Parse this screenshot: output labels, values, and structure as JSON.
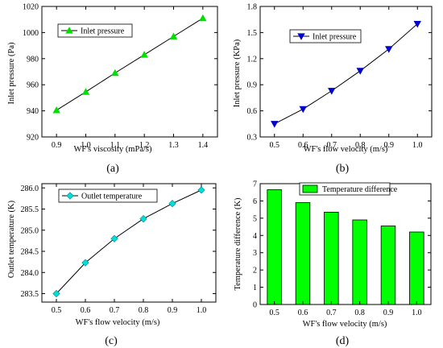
{
  "chart_data": [
    {
      "panel": "(a)",
      "type": "line",
      "marker": "triangle-up",
      "color": "#00e000",
      "x": [
        0.9,
        1.0,
        1.1,
        1.2,
        1.3,
        1.4
      ],
      "series": [
        {
          "name": "Inlet pressure",
          "values": [
            940.5,
            954.5,
            969,
            983,
            997,
            1011
          ]
        }
      ],
      "xlabel": "WF's viscosity (mPa/s)",
      "ylabel": "Inlet pressure (Pa)",
      "xlim": [
        0.85,
        1.45
      ],
      "ylim": [
        920,
        1020
      ],
      "xticks": [
        "0.9",
        "1.0",
        "1.1",
        "1.2",
        "1.3",
        "1.4"
      ],
      "yticks": [
        "920",
        "940",
        "960",
        "980",
        "1000",
        "1020"
      ],
      "legend": "top-left",
      "grid": false
    },
    {
      "panel": "(b)",
      "type": "line",
      "marker": "triangle-down",
      "color": "#0000cc",
      "x": [
        0.5,
        0.6,
        0.7,
        0.8,
        0.9,
        1.0
      ],
      "series": [
        {
          "name": "Inlet pressure",
          "values": [
            0.45,
            0.62,
            0.83,
            1.06,
            1.31,
            1.6
          ]
        }
      ],
      "xlabel": "WF's flow velocity (m/s)",
      "ylabel": "Inlet pressure (KPa)",
      "xlim": [
        0.45,
        1.05
      ],
      "ylim": [
        0.3,
        1.8
      ],
      "xticks": [
        "0.5",
        "0.6",
        "0.7",
        "0.8",
        "0.9",
        "1.0"
      ],
      "yticks": [
        "0.3",
        "0.6",
        "0.9",
        "1.2",
        "1.5",
        "1.8"
      ],
      "legend": "top-left",
      "grid": false
    },
    {
      "panel": "(c)",
      "type": "line",
      "marker": "diamond",
      "color": "#00dddd",
      "x": [
        0.5,
        0.6,
        0.7,
        0.8,
        0.9,
        1.0
      ],
      "series": [
        {
          "name": "Outlet temperature",
          "values": [
            283.5,
            284.23,
            284.8,
            285.27,
            285.63,
            285.95
          ]
        }
      ],
      "xlabel": "WF's flow velocity (m/s)",
      "ylabel": "Outlet temperature (K)",
      "xlim": [
        0.45,
        1.05
      ],
      "ylim": [
        283.3,
        286.1
      ],
      "xticks": [
        "0.5",
        "0.6",
        "0.7",
        "0.8",
        "0.9",
        "1.0"
      ],
      "yticks": [
        "283.5",
        "284.0",
        "284.5",
        "285.0",
        "285.5",
        "286.0"
      ],
      "legend": "top-left",
      "grid": false
    },
    {
      "panel": "(d)",
      "type": "bar",
      "color": "#00ff00",
      "categories": [
        "0.5",
        "0.6",
        "0.7",
        "0.8",
        "0.9",
        "1.0"
      ],
      "series": [
        {
          "name": "Temperature difference",
          "values": [
            6.65,
            5.9,
            5.35,
            4.9,
            4.55,
            4.2
          ]
        }
      ],
      "xlabel": "WF's flow velocity (m/s)",
      "ylabel": "Temperature difference (K)",
      "ylim": [
        0,
        7
      ],
      "yticks": [
        "0",
        "1",
        "2",
        "3",
        "4",
        "5",
        "6",
        "7"
      ],
      "legend": "top-left",
      "grid": false
    }
  ]
}
